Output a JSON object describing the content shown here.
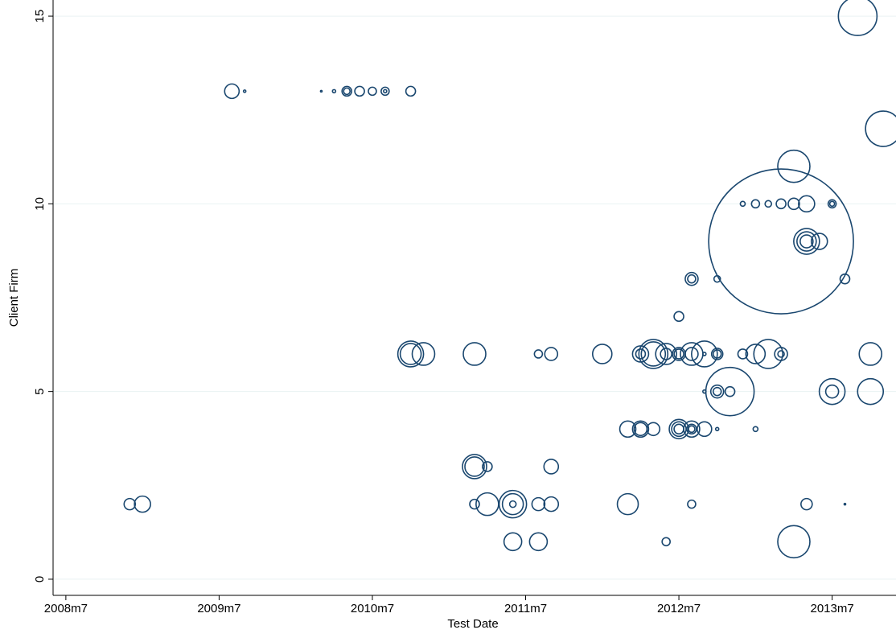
{
  "chart_data": {
    "type": "scatter",
    "xlabel": "Test Date",
    "ylabel": "Client Firm",
    "xlim": [
      581,
      647
    ],
    "ylim": [
      -0.43,
      15.43
    ],
    "xticks": [
      {
        "value": 582,
        "label": "2008m7"
      },
      {
        "value": 594,
        "label": "2009m7"
      },
      {
        "value": 606,
        "label": "2010m7"
      },
      {
        "value": 618,
        "label": "2011m7"
      },
      {
        "value": 630,
        "label": "2012m7"
      },
      {
        "value": 642,
        "label": "2013m7"
      }
    ],
    "yticks": [
      0,
      5,
      10,
      15
    ],
    "grid": true,
    "color": "#1a476f",
    "x": [
      644,
      595,
      596,
      602,
      603,
      604,
      604,
      605,
      606,
      607,
      607,
      609,
      646,
      639,
      635,
      636,
      637,
      638,
      639,
      640,
      642,
      642,
      638,
      640,
      640,
      640,
      641,
      631,
      631,
      633,
      643,
      630,
      609,
      609,
      610,
      614,
      619,
      620,
      624,
      627,
      627,
      628,
      628,
      629,
      629,
      630,
      630,
      631,
      631,
      632,
      632,
      633,
      633,
      635,
      636,
      637,
      638,
      638,
      645,
      632,
      633,
      633,
      634,
      634,
      642,
      642,
      645,
      626,
      627,
      627,
      628,
      630,
      630,
      630,
      631,
      631,
      631,
      632,
      633,
      636,
      614,
      614,
      615,
      620,
      587,
      588,
      614,
      615,
      617,
      617,
      617,
      619,
      620,
      626,
      631,
      640,
      643,
      617,
      619,
      629,
      639
    ],
    "values": [
      15,
      13,
      13,
      13,
      13,
      13,
      13,
      13,
      13,
      13,
      13,
      13,
      12,
      11,
      10,
      10,
      10,
      10,
      10,
      10,
      10,
      10,
      9,
      9,
      9,
      9,
      9,
      8,
      8,
      8,
      8,
      7,
      6,
      6,
      6,
      6,
      6,
      6,
      6,
      6,
      6,
      6,
      6,
      6,
      6,
      6,
      6,
      6,
      6,
      6,
      6,
      6,
      6,
      6,
      6,
      6,
      6,
      6,
      6,
      5,
      5,
      5,
      5,
      5,
      5,
      5,
      5,
      4,
      4,
      4,
      4,
      4,
      4,
      4,
      4,
      4,
      4,
      4,
      4,
      4,
      3,
      3,
      3,
      3,
      2,
      2,
      2,
      2,
      2,
      2,
      2,
      2,
      2,
      2,
      2,
      2,
      2,
      1,
      1,
      1,
      1
    ],
    "sizes": [
      576,
      81,
      2.25,
      1,
      4,
      36,
      16,
      36,
      25,
      25,
      4,
      36,
      484,
      400,
      9,
      25,
      16,
      36,
      49,
      100,
      25,
      9,
      8100,
      256,
      144,
      64,
      100,
      64,
      25,
      16,
      36,
      36,
      256,
      169,
      196,
      196,
      25,
      64,
      144,
      100,
      36,
      324,
      225,
      49,
      169,
      64,
      36,
      196,
      64,
      256,
      4,
      49,
      25,
      36,
      144,
      324,
      64,
      16,
      196,
      4,
      64,
      25,
      900,
      36,
      256,
      64,
      256,
      100,
      100,
      64,
      64,
      144,
      81,
      36,
      100,
      36,
      16,
      81,
      4,
      9,
      225,
      144,
      36,
      81,
      49,
      100,
      36,
      196,
      289,
      169,
      16,
      64,
      81,
      169,
      25,
      49,
      1,
      121,
      121,
      25,
      400
    ]
  }
}
